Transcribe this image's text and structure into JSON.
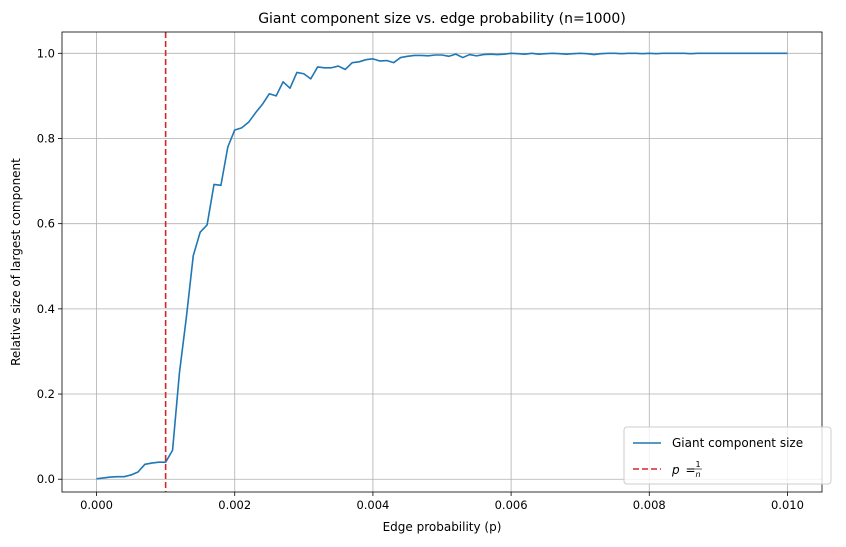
{
  "chart_data": {
    "type": "line",
    "title": "Giant component size vs. edge probability (n=1000)",
    "xlabel": "Edge probability (p)",
    "ylabel": "Relative size of largest component",
    "xlim": [
      -0.0005,
      0.0105
    ],
    "ylim": [
      -0.03,
      1.05
    ],
    "xticks": [
      0.0,
      0.002,
      0.004,
      0.006,
      0.008,
      0.01
    ],
    "xtick_labels": [
      "0.000",
      "0.002",
      "0.004",
      "0.006",
      "0.008",
      "0.010"
    ],
    "yticks": [
      0.0,
      0.2,
      0.4,
      0.6,
      0.8,
      1.0
    ],
    "ytick_labels": [
      "0.0",
      "0.2",
      "0.4",
      "0.6",
      "0.8",
      "1.0"
    ],
    "grid": true,
    "legend_position": "bottom-right",
    "series": [
      {
        "name": "Giant component size",
        "color": "#1f77b4",
        "style": "solid",
        "x": [
          0.0,
          0.0001,
          0.0002,
          0.0003,
          0.0004,
          0.0005,
          0.0006,
          0.0007,
          0.0008,
          0.0009,
          0.001,
          0.0011,
          0.0012,
          0.0013,
          0.0014,
          0.0015,
          0.0016,
          0.0017,
          0.0018,
          0.0019,
          0.002,
          0.0021,
          0.0022,
          0.0023,
          0.0024,
          0.0025,
          0.0026,
          0.0027,
          0.0028,
          0.0029,
          0.003,
          0.0031,
          0.0032,
          0.0033,
          0.0034,
          0.0035,
          0.0036,
          0.0037,
          0.0038,
          0.0039,
          0.004,
          0.0041,
          0.0042,
          0.0043,
          0.0044,
          0.0045,
          0.0046,
          0.0047,
          0.0048,
          0.0049,
          0.005,
          0.0051,
          0.0052,
          0.0053,
          0.0054,
          0.0055,
          0.0056,
          0.0057,
          0.0058,
          0.0059,
          0.006,
          0.0061,
          0.0062,
          0.0063,
          0.0064,
          0.0065,
          0.0066,
          0.0067,
          0.0068,
          0.0069,
          0.007,
          0.0071,
          0.0072,
          0.0073,
          0.0074,
          0.0075,
          0.0076,
          0.0077,
          0.0078,
          0.0079,
          0.008,
          0.0081,
          0.0082,
          0.0083,
          0.0084,
          0.0085,
          0.0086,
          0.0087,
          0.0088,
          0.0089,
          0.009,
          0.0091,
          0.0092,
          0.0093,
          0.0094,
          0.0095,
          0.0096,
          0.0097,
          0.0098,
          0.0099,
          0.01
        ],
        "y": [
          0.001,
          0.003,
          0.005,
          0.006,
          0.006,
          0.01,
          0.017,
          0.035,
          0.038,
          0.04,
          0.04,
          0.068,
          0.25,
          0.38,
          0.525,
          0.58,
          0.597,
          0.692,
          0.69,
          0.78,
          0.82,
          0.825,
          0.838,
          0.86,
          0.88,
          0.905,
          0.9,
          0.933,
          0.918,
          0.955,
          0.952,
          0.94,
          0.968,
          0.966,
          0.966,
          0.97,
          0.962,
          0.978,
          0.98,
          0.985,
          0.987,
          0.982,
          0.983,
          0.978,
          0.99,
          0.993,
          0.995,
          0.995,
          0.994,
          0.996,
          0.996,
          0.993,
          0.998,
          0.99,
          0.997,
          0.994,
          0.997,
          0.998,
          0.997,
          0.998,
          1.0,
          0.999,
          0.998,
          1.0,
          0.998,
          0.999,
          1.0,
          0.999,
          0.998,
          0.999,
          1.0,
          0.999,
          0.997,
          0.999,
          1.0,
          1.0,
          0.999,
          1.0,
          1.0,
          0.999,
          1.0,
          0.999,
          1.0,
          1.0,
          1.0,
          1.0,
          0.999,
          1.0,
          1.0,
          1.0,
          1.0,
          1.0,
          1.0,
          1.0,
          1.0,
          1.0,
          1.0,
          1.0,
          1.0,
          1.0,
          1.0
        ]
      },
      {
        "name": "p = 1/n",
        "legend_label_prefix": "p",
        "legend_label_eq": "=",
        "legend_label_num": "1",
        "legend_label_den": "n",
        "color": "#d62728",
        "style": "dashed",
        "vline_x": 0.001
      }
    ]
  }
}
